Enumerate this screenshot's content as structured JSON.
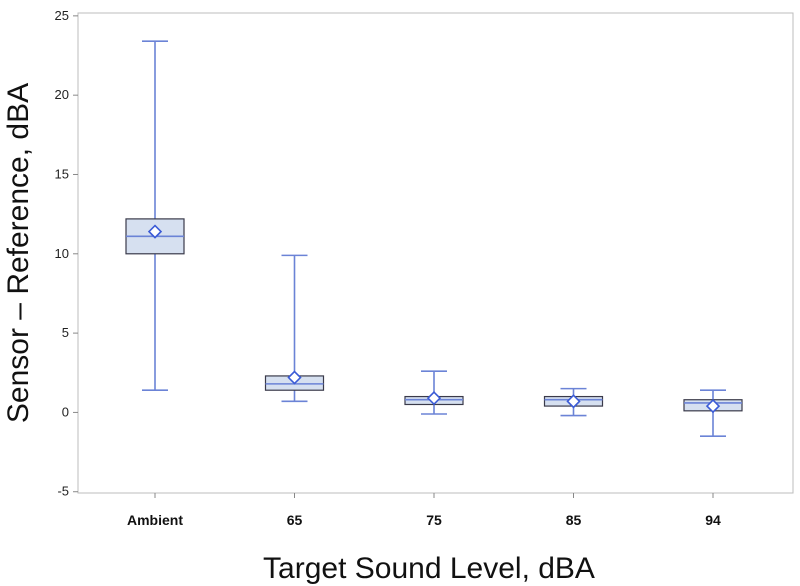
{
  "chart_data": {
    "type": "box",
    "xlabel": "Target Sound Level, dBA",
    "ylabel": "Sensor – Reference, dBA",
    "ylim": [
      -5,
      25
    ],
    "yticks": [
      -5,
      0,
      5,
      10,
      15,
      20,
      25
    ],
    "grid": false,
    "categories": [
      "Ambient",
      "65",
      "75",
      "85",
      "94"
    ],
    "boxes": [
      {
        "category": "Ambient",
        "min": 1.4,
        "q1": 10.0,
        "median": 11.1,
        "q3": 12.2,
        "max": 23.4,
        "mean": 11.4
      },
      {
        "category": "65",
        "min": 0.7,
        "q1": 1.4,
        "median": 1.8,
        "q3": 2.3,
        "max": 9.9,
        "mean": 2.2
      },
      {
        "category": "75",
        "min": -0.1,
        "q1": 0.5,
        "median": 0.8,
        "q3": 1.0,
        "max": 2.6,
        "mean": 0.9
      },
      {
        "category": "85",
        "min": -0.2,
        "q1": 0.4,
        "median": 0.8,
        "q3": 1.0,
        "max": 1.5,
        "mean": 0.7
      },
      {
        "category": "94",
        "min": -1.5,
        "q1": 0.1,
        "median": 0.6,
        "q3": 0.8,
        "max": 1.4,
        "mean": 0.4
      }
    ],
    "colors": {
      "box_fill": "#d6e0f0",
      "box_edge": "#3a3a4a",
      "whisker": "#6b83d6",
      "mean_marker": "#3b5bd6",
      "frame": "#bcbcbc"
    }
  }
}
